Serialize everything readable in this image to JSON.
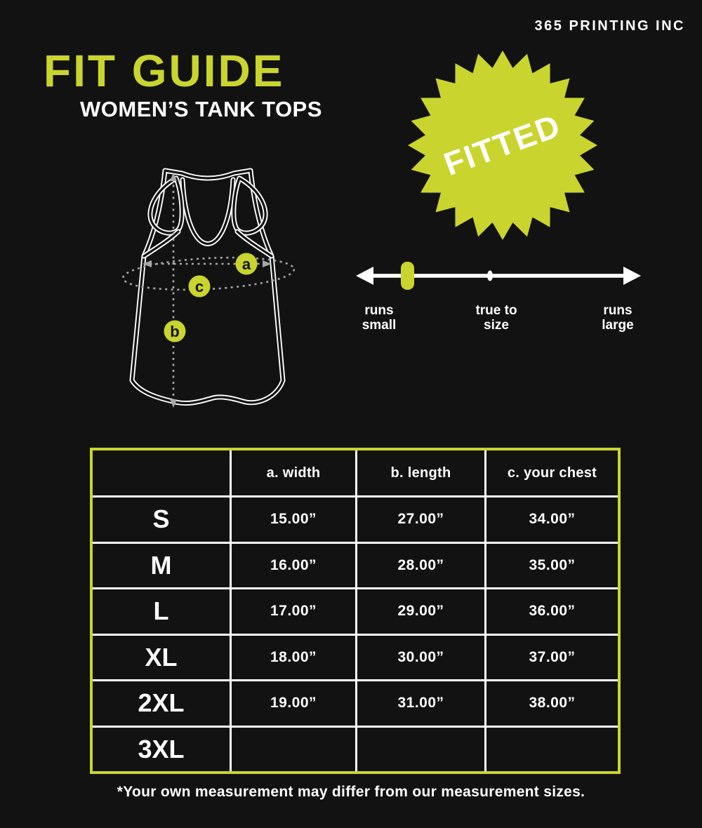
{
  "brand": "365 PRINTING INC",
  "title": "FIT GUIDE",
  "subtitle": "WOMEN’S TANK TOPS",
  "badge": {
    "label": "FITTED"
  },
  "fit_scale": {
    "labels": [
      {
        "line1": "runs",
        "line2": "small"
      },
      {
        "line1": "true to",
        "line2": "size"
      },
      {
        "line1": "runs",
        "line2": "large"
      }
    ],
    "marker_position": "runs small"
  },
  "diagram": {
    "markers": [
      "a",
      "b",
      "c"
    ]
  },
  "size_chart": {
    "columns": [
      "",
      "a. width",
      "b. length",
      "c. your chest"
    ],
    "rows": [
      {
        "size": "S",
        "values": [
          "15.00”",
          "27.00”",
          "34.00”"
        ]
      },
      {
        "size": "M",
        "values": [
          "16.00”",
          "28.00”",
          "35.00”"
        ]
      },
      {
        "size": "L",
        "values": [
          "17.00”",
          "29.00”",
          "36.00”"
        ]
      },
      {
        "size": "XL",
        "values": [
          "18.00”",
          "30.00”",
          "37.00”"
        ]
      },
      {
        "size": "2XL",
        "values": [
          "19.00”",
          "31.00”",
          "38.00”"
        ]
      },
      {
        "size": "3XL",
        "values": [
          "",
          "",
          ""
        ]
      }
    ]
  },
  "footnote": "*Your own measurement may differ from our measurement sizes.",
  "colors": {
    "accent": "#c9d52e",
    "background": "#121212",
    "text": "#ffffff",
    "dash": "#a8a8a8"
  }
}
